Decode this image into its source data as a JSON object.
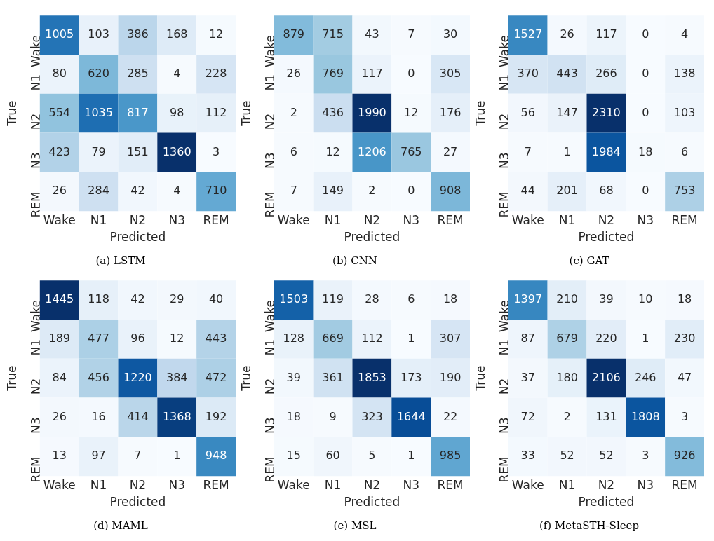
{
  "chart_data": [
    {
      "type": "heatmap",
      "data_labels": true,
      "title": "(a) LSTM",
      "xlabel": "Predicted",
      "ylabel": "True",
      "categories": [
        "Wake",
        "N1",
        "N2",
        "N3",
        "REM"
      ],
      "y_categories": [
        "Wake",
        "N1",
        "N2",
        "N3",
        "REM"
      ],
      "cells": [
        [
          1005,
          103,
          386,
          168,
          12
        ],
        [
          80,
          620,
          285,
          4,
          228
        ],
        [
          554,
          1035,
          817,
          98,
          112
        ],
        [
          423,
          79,
          151,
          1360,
          3
        ],
        [
          26,
          284,
          42,
          4,
          710
        ]
      ]
    },
    {
      "type": "heatmap",
      "data_labels": true,
      "title": "(b) CNN",
      "xlabel": "Predicted",
      "ylabel": "True",
      "categories": [
        "Wake",
        "N1",
        "N2",
        "N3",
        "REM"
      ],
      "y_categories": [
        "Wake",
        "N1",
        "N2",
        "N3",
        "REM"
      ],
      "cells": [
        [
          879,
          715,
          43,
          7,
          30
        ],
        [
          26,
          769,
          117,
          0,
          305
        ],
        [
          2,
          436,
          1990,
          12,
          176
        ],
        [
          6,
          12,
          1206,
          765,
          27
        ],
        [
          7,
          149,
          2,
          0,
          908
        ]
      ]
    },
    {
      "type": "heatmap",
      "data_labels": true,
      "title": "(c) GAT",
      "xlabel": "Predicted",
      "ylabel": "True",
      "categories": [
        "Wake",
        "N1",
        "N2",
        "N3",
        "REM"
      ],
      "y_categories": [
        "Wake",
        "N1",
        "N2",
        "N3",
        "REM"
      ],
      "cells": [
        [
          1527,
          26,
          117,
          0,
          4
        ],
        [
          370,
          443,
          266,
          0,
          138
        ],
        [
          56,
          147,
          2310,
          0,
          103
        ],
        [
          7,
          1,
          1984,
          18,
          6
        ],
        [
          44,
          201,
          68,
          0,
          753
        ]
      ]
    },
    {
      "type": "heatmap",
      "data_labels": true,
      "title": "(d) MAML",
      "xlabel": "Predicted",
      "ylabel": "True",
      "categories": [
        "Wake",
        "N1",
        "N2",
        "N3",
        "REM"
      ],
      "y_categories": [
        "Wake",
        "N1",
        "N2",
        "N3",
        "REM"
      ],
      "cells": [
        [
          1445,
          118,
          42,
          29,
          40
        ],
        [
          189,
          477,
          96,
          12,
          443
        ],
        [
          84,
          456,
          1220,
          384,
          472
        ],
        [
          26,
          16,
          414,
          1368,
          192
        ],
        [
          13,
          97,
          7,
          1,
          948
        ]
      ]
    },
    {
      "type": "heatmap",
      "data_labels": true,
      "title": "(e) MSL",
      "xlabel": "Predicted",
      "ylabel": "True",
      "categories": [
        "Wake",
        "N1",
        "N2",
        "N3",
        "REM"
      ],
      "y_categories": [
        "Wake",
        "N1",
        "N2",
        "N3",
        "REM"
      ],
      "cells": [
        [
          1503,
          119,
          28,
          6,
          18
        ],
        [
          128,
          669,
          112,
          1,
          307
        ],
        [
          39,
          361,
          1853,
          173,
          190
        ],
        [
          18,
          9,
          323,
          1644,
          22
        ],
        [
          15,
          60,
          5,
          1,
          985
        ]
      ]
    },
    {
      "type": "heatmap",
      "data_labels": true,
      "title": "(f) MetaSTH-Sleep",
      "xlabel": "Predicted",
      "ylabel": "True",
      "categories": [
        "Wake",
        "N1",
        "N2",
        "N3",
        "REM"
      ],
      "y_categories": [
        "Wake",
        "N1",
        "N2",
        "N3",
        "REM"
      ],
      "cells": [
        [
          1397,
          210,
          39,
          10,
          18
        ],
        [
          87,
          679,
          220,
          1,
          230
        ],
        [
          37,
          180,
          2106,
          246,
          47
        ],
        [
          72,
          2,
          131,
          1808,
          3
        ],
        [
          33,
          52,
          52,
          3,
          926
        ]
      ]
    }
  ]
}
